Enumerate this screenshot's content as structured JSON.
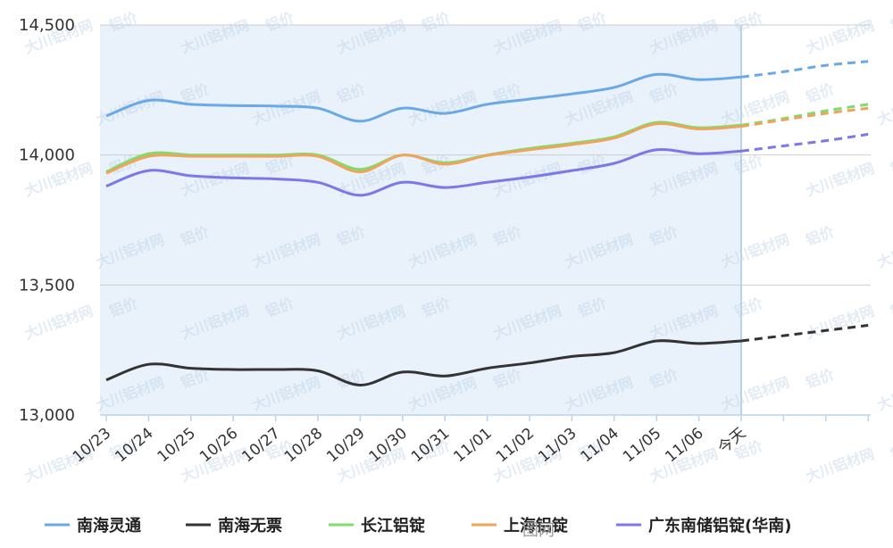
{
  "chart_data": {
    "type": "line",
    "categories": [
      "10/23",
      "10/24",
      "10/25",
      "10/26",
      "10/27",
      "10/28",
      "10/29",
      "10/30",
      "10/31",
      "11/01",
      "11/02",
      "11/03",
      "11/04",
      "11/05",
      "11/06",
      "今天",
      "",
      "",
      ""
    ],
    "today_label": "今天",
    "forecast_from": 15,
    "ylim": [
      13000,
      14500
    ],
    "yticks": [
      13000,
      13500,
      14000,
      14500
    ],
    "ytick_labels": [
      "13,000",
      "13,500",
      "14,000",
      "14,500"
    ],
    "grid": "horizontal",
    "legend_position": "bottom",
    "series": [
      {
        "name": "南海灵通",
        "color": "#6aa9e8",
        "values": [
          14150,
          14210,
          14195,
          14190,
          14188,
          14180,
          14130,
          14180,
          14160,
          14195,
          14215,
          14235,
          14260,
          14310,
          14290,
          14300,
          14320,
          14345,
          14360
        ]
      },
      {
        "name": "南海无票",
        "color": "#333333",
        "values": [
          13135,
          13195,
          13180,
          13175,
          13175,
          13170,
          13115,
          13165,
          13150,
          13180,
          13200,
          13225,
          13240,
          13285,
          13275,
          13285,
          13305,
          13325,
          13345
        ]
      },
      {
        "name": "长江铝锭",
        "color": "#7ddc6c",
        "values": [
          13935,
          14005,
          14000,
          14000,
          14000,
          14000,
          13945,
          14000,
          13970,
          14000,
          14025,
          14045,
          14070,
          14125,
          14105,
          14115,
          14140,
          14170,
          14195
        ]
      },
      {
        "name": "上海铝锭",
        "color": "#f0a35a",
        "values": [
          13930,
          13995,
          13995,
          13995,
          13995,
          13995,
          13935,
          14000,
          13965,
          13998,
          14020,
          14040,
          14065,
          14120,
          14100,
          14110,
          14135,
          14160,
          14180
        ]
      },
      {
        "name": "广东南储铝锭(华南)",
        "color": "#7c78e8",
        "values": [
          13880,
          13940,
          13920,
          13912,
          13908,
          13895,
          13845,
          13895,
          13875,
          13895,
          13915,
          13940,
          13968,
          14020,
          14005,
          14015,
          14035,
          14055,
          14080
        ]
      }
    ]
  },
  "watermarks": {
    "brand": "大川铝材网",
    "tag": "铝价",
    "footer_site": "图网"
  }
}
